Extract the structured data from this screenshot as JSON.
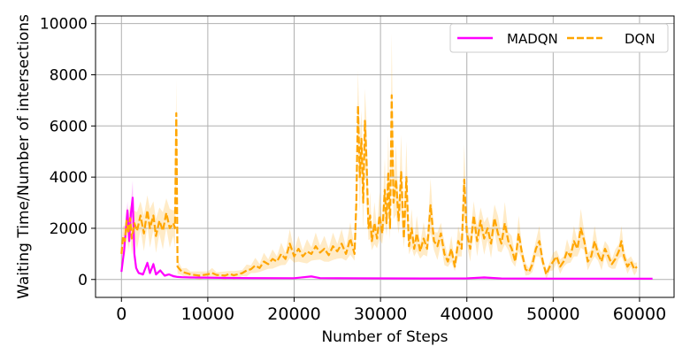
{
  "chart_data": {
    "type": "line",
    "xlabel": "Number of Steps",
    "ylabel": "Waiting Time/Number of intersections",
    "xlim": [
      -3000,
      64000
    ],
    "ylim": [
      -700,
      10300
    ],
    "x_ticks": [
      0,
      10000,
      20000,
      30000,
      40000,
      50000,
      60000
    ],
    "y_ticks": [
      0,
      2000,
      4000,
      6000,
      8000,
      10000
    ],
    "x_tick_labels": [
      "0",
      "10000",
      "20000",
      "30000",
      "40000",
      "50000",
      "60000"
    ],
    "y_tick_labels": [
      "0",
      "2000",
      "4000",
      "6000",
      "8000",
      "10000"
    ],
    "grid": true,
    "legend": {
      "placement": "top-right",
      "ncol": 2
    },
    "series": [
      {
        "name": "MADQN",
        "color": "#ff00ff",
        "style": "solid",
        "band_color": "#ff00ff",
        "points": [
          [
            0,
            300
          ],
          [
            300,
            1100
          ],
          [
            500,
            1900
          ],
          [
            700,
            2700
          ],
          [
            900,
            1500
          ],
          [
            1100,
            2600
          ],
          [
            1300,
            3200
          ],
          [
            1500,
            1000
          ],
          [
            1700,
            450
          ],
          [
            2000,
            250
          ],
          [
            2500,
            200
          ],
          [
            3000,
            650
          ],
          [
            3300,
            250
          ],
          [
            3700,
            600
          ],
          [
            4000,
            200
          ],
          [
            4500,
            350
          ],
          [
            5000,
            150
          ],
          [
            5500,
            200
          ],
          [
            6000,
            130
          ],
          [
            6500,
            100
          ],
          [
            7000,
            90
          ],
          [
            8000,
            80
          ],
          [
            10000,
            70
          ],
          [
            12000,
            60
          ],
          [
            15000,
            55
          ],
          [
            20000,
            50
          ],
          [
            22000,
            120
          ],
          [
            23000,
            55
          ],
          [
            25000,
            50
          ],
          [
            30000,
            45
          ],
          [
            35000,
            40
          ],
          [
            40000,
            45
          ],
          [
            42000,
            80
          ],
          [
            44000,
            40
          ],
          [
            50000,
            35
          ],
          [
            55000,
            35
          ],
          [
            60000,
            30
          ],
          [
            61500,
            30
          ]
        ]
      },
      {
        "name": "DQN",
        "color": "#ffa500",
        "style": "dashed",
        "band_color": "#ffa500",
        "points": [
          [
            0,
            1000
          ],
          [
            200,
            1700
          ],
          [
            400,
            1500
          ],
          [
            600,
            2300
          ],
          [
            800,
            1800
          ],
          [
            1000,
            2400
          ],
          [
            1200,
            1600
          ],
          [
            1500,
            2200
          ],
          [
            1800,
            1900
          ],
          [
            2200,
            2500
          ],
          [
            2600,
            1800
          ],
          [
            3000,
            2700
          ],
          [
            3300,
            2000
          ],
          [
            3700,
            2500
          ],
          [
            4000,
            1700
          ],
          [
            4400,
            2300
          ],
          [
            4800,
            1900
          ],
          [
            5200,
            2600
          ],
          [
            5600,
            2000
          ],
          [
            6000,
            2200
          ],
          [
            6200,
            2000
          ],
          [
            6350,
            6500
          ],
          [
            6500,
            500
          ],
          [
            7000,
            300
          ],
          [
            7500,
            250
          ],
          [
            8000,
            200
          ],
          [
            9000,
            150
          ],
          [
            10000,
            200
          ],
          [
            10500,
            250
          ],
          [
            11000,
            180
          ],
          [
            12000,
            150
          ],
          [
            12500,
            220
          ],
          [
            13000,
            160
          ],
          [
            14000,
            250
          ],
          [
            14500,
            350
          ],
          [
            15000,
            400
          ],
          [
            15500,
            550
          ],
          [
            16000,
            450
          ],
          [
            16500,
            700
          ],
          [
            17000,
            600
          ],
          [
            17500,
            800
          ],
          [
            18000,
            700
          ],
          [
            18500,
            1000
          ],
          [
            19000,
            800
          ],
          [
            19500,
            1400
          ],
          [
            20000,
            900
          ],
          [
            20500,
            1200
          ],
          [
            21000,
            900
          ],
          [
            21500,
            1100
          ],
          [
            22000,
            1000
          ],
          [
            22500,
            1300
          ],
          [
            23000,
            1050
          ],
          [
            23500,
            1200
          ],
          [
            24000,
            950
          ],
          [
            24500,
            1300
          ],
          [
            25000,
            1100
          ],
          [
            25500,
            1400
          ],
          [
            26000,
            1000
          ],
          [
            26500,
            1600
          ],
          [
            27000,
            1000
          ],
          [
            27200,
            3000
          ],
          [
            27400,
            6800
          ],
          [
            27600,
            4000
          ],
          [
            27800,
            5500
          ],
          [
            28000,
            3000
          ],
          [
            28200,
            6200
          ],
          [
            28400,
            4500
          ],
          [
            28600,
            2000
          ],
          [
            28800,
            2500
          ],
          [
            29000,
            1500
          ],
          [
            29300,
            2200
          ],
          [
            29600,
            1600
          ],
          [
            29900,
            2500
          ],
          [
            30200,
            1800
          ],
          [
            30500,
            3500
          ],
          [
            30700,
            2200
          ],
          [
            30900,
            4200
          ],
          [
            31100,
            2000
          ],
          [
            31300,
            7200
          ],
          [
            31500,
            3000
          ],
          [
            31800,
            3900
          ],
          [
            32100,
            2300
          ],
          [
            32400,
            4200
          ],
          [
            32700,
            1600
          ],
          [
            33000,
            4000
          ],
          [
            33300,
            1300
          ],
          [
            33600,
            2000
          ],
          [
            33900,
            1200
          ],
          [
            34200,
            1800
          ],
          [
            34600,
            1100
          ],
          [
            35000,
            1600
          ],
          [
            35400,
            1200
          ],
          [
            35800,
            2900
          ],
          [
            36200,
            1500
          ],
          [
            36600,
            1300
          ],
          [
            37000,
            1800
          ],
          [
            37400,
            1000
          ],
          [
            37800,
            700
          ],
          [
            38200,
            1200
          ],
          [
            38600,
            500
          ],
          [
            39000,
            1500
          ],
          [
            39400,
            1200
          ],
          [
            39700,
            3900
          ],
          [
            40000,
            1800
          ],
          [
            40400,
            1200
          ],
          [
            40800,
            2500
          ],
          [
            41200,
            1500
          ],
          [
            41600,
            2300
          ],
          [
            42000,
            1600
          ],
          [
            42400,
            2000
          ],
          [
            42800,
            1400
          ],
          [
            43200,
            2400
          ],
          [
            43600,
            1800
          ],
          [
            44000,
            1400
          ],
          [
            44400,
            2200
          ],
          [
            44800,
            1500
          ],
          [
            45200,
            1200
          ],
          [
            45600,
            700
          ],
          [
            46000,
            1800
          ],
          [
            46400,
            1000
          ],
          [
            46800,
            400
          ],
          [
            47200,
            300
          ],
          [
            47600,
            600
          ],
          [
            48000,
            1200
          ],
          [
            48400,
            1500
          ],
          [
            48800,
            700
          ],
          [
            49200,
            200
          ],
          [
            49600,
            500
          ],
          [
            50000,
            700
          ],
          [
            50400,
            900
          ],
          [
            50800,
            500
          ],
          [
            51200,
            700
          ],
          [
            51600,
            1100
          ],
          [
            52000,
            900
          ],
          [
            52400,
            1500
          ],
          [
            52800,
            1200
          ],
          [
            53200,
            2000
          ],
          [
            53600,
            1500
          ],
          [
            54000,
            700
          ],
          [
            54400,
            900
          ],
          [
            54800,
            1500
          ],
          [
            55200,
            1000
          ],
          [
            55600,
            700
          ],
          [
            56000,
            1200
          ],
          [
            56400,
            900
          ],
          [
            56800,
            600
          ],
          [
            57200,
            800
          ],
          [
            57600,
            1100
          ],
          [
            57900,
            1500
          ],
          [
            58200,
            900
          ],
          [
            58600,
            500
          ],
          [
            59000,
            700
          ],
          [
            59400,
            400
          ],
          [
            59700,
            500
          ]
        ]
      }
    ]
  }
}
